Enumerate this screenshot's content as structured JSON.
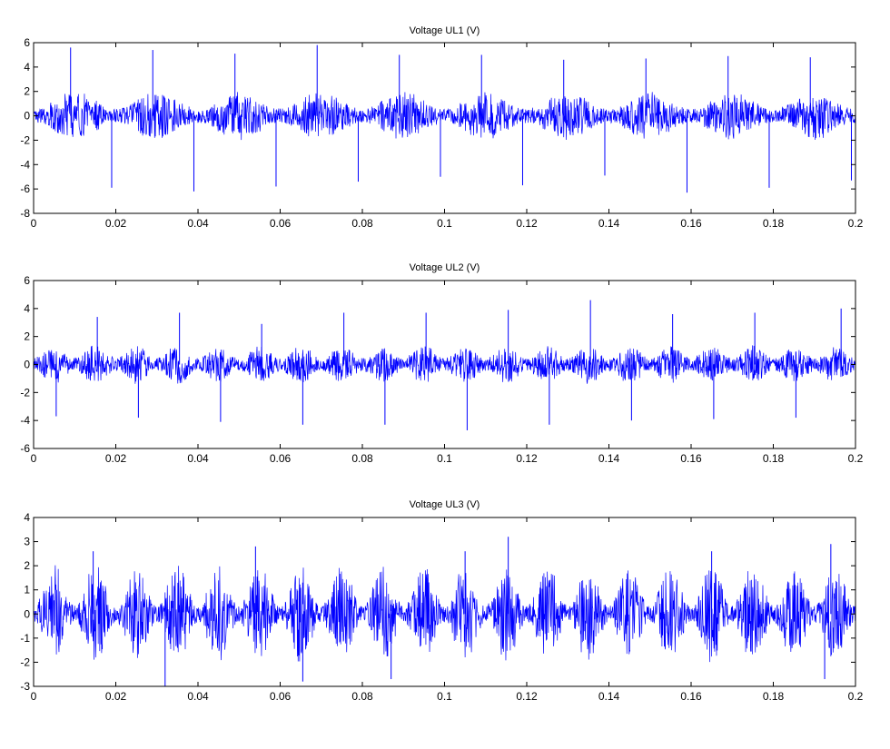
{
  "chart_data": [
    {
      "type": "line",
      "title": "Voltage UL1 (V)",
      "xlabel": "",
      "ylabel": "",
      "xlim": [
        0,
        0.2
      ],
      "ylim": [
        -8,
        6
      ],
      "x_ticks": [
        0,
        0.02,
        0.04,
        0.06,
        0.08,
        0.1,
        0.12,
        0.14,
        0.16,
        0.18,
        0.2
      ],
      "x_tick_labels": [
        "0",
        "0.02",
        "0.04",
        "0.06",
        "0.08",
        "0.1",
        "0.12",
        "0.14",
        "0.16",
        "0.18",
        "0.2"
      ],
      "y_ticks": [
        -8,
        -6,
        -4,
        -2,
        0,
        2,
        4,
        6
      ],
      "y_tick_labels": [
        "-8",
        "-6",
        "-4",
        "-2",
        "0",
        "2",
        "4",
        "6"
      ],
      "grid": false,
      "color": "#0000ff",
      "envelope": {
        "period": 0.02,
        "base_amplitude": 0.6,
        "burst_amplitude": 1.4
      },
      "spikes": [
        {
          "x": 0.009,
          "y": 5.6
        },
        {
          "x": 0.019,
          "y": -5.9
        },
        {
          "x": 0.029,
          "y": 5.4
        },
        {
          "x": 0.039,
          "y": -6.2
        },
        {
          "x": 0.049,
          "y": 5.1
        },
        {
          "x": 0.059,
          "y": -5.8
        },
        {
          "x": 0.069,
          "y": 5.8
        },
        {
          "x": 0.079,
          "y": -5.4
        },
        {
          "x": 0.089,
          "y": 5.0
        },
        {
          "x": 0.099,
          "y": -5.0
        },
        {
          "x": 0.109,
          "y": 5.0
        },
        {
          "x": 0.119,
          "y": -5.7
        },
        {
          "x": 0.129,
          "y": 4.6
        },
        {
          "x": 0.139,
          "y": -4.9
        },
        {
          "x": 0.149,
          "y": 4.7
        },
        {
          "x": 0.159,
          "y": -6.3
        },
        {
          "x": 0.169,
          "y": 4.9
        },
        {
          "x": 0.179,
          "y": -5.9
        },
        {
          "x": 0.189,
          "y": 4.8
        },
        {
          "x": 0.199,
          "y": -5.3
        }
      ]
    },
    {
      "type": "line",
      "title": "Voltage UL2 (V)",
      "xlabel": "",
      "ylabel": "",
      "xlim": [
        0,
        0.2
      ],
      "ylim": [
        -6,
        6
      ],
      "x_ticks": [
        0,
        0.02,
        0.04,
        0.06,
        0.08,
        0.1,
        0.12,
        0.14,
        0.16,
        0.18,
        0.2
      ],
      "x_tick_labels": [
        "0",
        "0.02",
        "0.04",
        "0.06",
        "0.08",
        "0.1",
        "0.12",
        "0.14",
        "0.16",
        "0.18",
        "0.2"
      ],
      "y_ticks": [
        -6,
        -4,
        -2,
        0,
        2,
        4,
        6
      ],
      "y_tick_labels": [
        "-6",
        "-4",
        "-2",
        "0",
        "2",
        "4",
        "6"
      ],
      "grid": false,
      "color": "#0000ff",
      "envelope": {
        "period": 0.01,
        "base_amplitude": 0.5,
        "burst_amplitude": 0.9
      },
      "spikes": [
        {
          "x": 0.0055,
          "y": -3.7
        },
        {
          "x": 0.0155,
          "y": 3.4
        },
        {
          "x": 0.0255,
          "y": -3.8
        },
        {
          "x": 0.0355,
          "y": 3.7
        },
        {
          "x": 0.0455,
          "y": -4.1
        },
        {
          "x": 0.0555,
          "y": 2.9
        },
        {
          "x": 0.0655,
          "y": -4.3
        },
        {
          "x": 0.0755,
          "y": 3.7
        },
        {
          "x": 0.0855,
          "y": -4.3
        },
        {
          "x": 0.0955,
          "y": 3.7
        },
        {
          "x": 0.1055,
          "y": -4.7
        },
        {
          "x": 0.1155,
          "y": 3.9
        },
        {
          "x": 0.1255,
          "y": -4.3
        },
        {
          "x": 0.1355,
          "y": 4.6
        },
        {
          "x": 0.1455,
          "y": -4.0
        },
        {
          "x": 0.1555,
          "y": 3.6
        },
        {
          "x": 0.1655,
          "y": -3.9
        },
        {
          "x": 0.1755,
          "y": 3.7
        },
        {
          "x": 0.1855,
          "y": -3.8
        },
        {
          "x": 0.1965,
          "y": 4.0
        }
      ]
    },
    {
      "type": "line",
      "title": "Voltage UL3 (V)",
      "xlabel": "",
      "ylabel": "",
      "xlim": [
        0,
        0.2
      ],
      "ylim": [
        -3,
        4
      ],
      "x_ticks": [
        0,
        0.02,
        0.04,
        0.06,
        0.08,
        0.1,
        0.12,
        0.14,
        0.16,
        0.18,
        0.2
      ],
      "x_tick_labels": [
        "0",
        "0.02",
        "0.04",
        "0.06",
        "0.08",
        "0.1",
        "0.12",
        "0.14",
        "0.16",
        "0.18",
        "0.2"
      ],
      "y_ticks": [
        -3,
        -2,
        -1,
        0,
        1,
        2,
        3,
        4
      ],
      "y_tick_labels": [
        "-3",
        "-2",
        "-1",
        "0",
        "1",
        "2",
        "3",
        "4"
      ],
      "grid": false,
      "color": "#0000ff",
      "envelope": {
        "period": 0.01,
        "base_amplitude": 0.35,
        "burst_amplitude": 1.7
      },
      "spikes": [
        {
          "x": 0.0145,
          "y": 2.6
        },
        {
          "x": 0.032,
          "y": -3.0
        },
        {
          "x": 0.054,
          "y": 2.8
        },
        {
          "x": 0.0655,
          "y": -2.8
        },
        {
          "x": 0.087,
          "y": -2.7
        },
        {
          "x": 0.105,
          "y": 2.6
        },
        {
          "x": 0.1155,
          "y": 3.2
        },
        {
          "x": 0.165,
          "y": 2.6
        },
        {
          "x": 0.1925,
          "y": -2.7
        },
        {
          "x": 0.194,
          "y": 2.9
        }
      ]
    }
  ]
}
